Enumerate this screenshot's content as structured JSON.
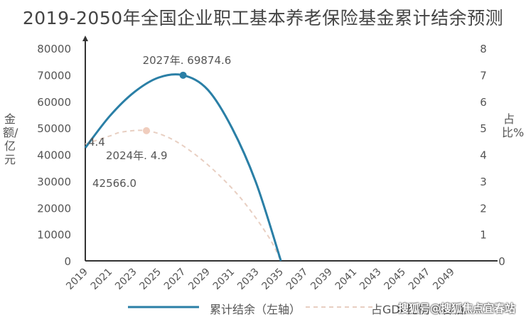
{
  "chart_data": {
    "type": "line",
    "title": "2019-2050年全国企业职工基本养老保险基金累计结余预测",
    "ylabel_left": "金额/亿元",
    "ylabel_right": "占比%",
    "x_ticks": [
      "2019",
      "2021",
      "2023",
      "2025",
      "2027",
      "2029",
      "2031",
      "2033",
      "2035",
      "2037",
      "2039",
      "2041",
      "2043",
      "2045",
      "2047",
      "2049"
    ],
    "xlim": [
      2019,
      2049
    ],
    "ylim_left": [
      0,
      80000
    ],
    "y_ticks_left": [
      0,
      10000,
      20000,
      30000,
      40000,
      50000,
      60000,
      70000,
      80000
    ],
    "ylim_right": [
      0,
      8
    ],
    "y_ticks_right": [
      0,
      1,
      2,
      3,
      4,
      5,
      6,
      7,
      8
    ],
    "series": [
      {
        "name": "累计结余（左轴）",
        "axis": "left",
        "color": "#2a7fa6",
        "style": "solid",
        "x": [
          2019,
          2021,
          2023,
          2025,
          2027,
          2029,
          2031,
          2033,
          2035
        ],
        "y": [
          42566.0,
          54500,
          63500,
          69000,
          69874.6,
          64500,
          50000,
          29000,
          0
        ]
      },
      {
        "name": "占GDP比例（右轴）",
        "axis": "right",
        "color": "#e8cfc2",
        "style": "dashed",
        "x": [
          2019,
          2021,
          2022,
          2024,
          2026,
          2028,
          2030,
          2032,
          2034,
          2035
        ],
        "y": [
          4.4,
          4.7,
          4.85,
          4.9,
          4.6,
          4.0,
          3.2,
          2.2,
          0.9,
          0
        ]
      }
    ],
    "annotations": [
      {
        "text": "2027年. 69874.6",
        "series": 0,
        "x": 2027,
        "y": 69874.6,
        "marker_color": "#2a7fa6"
      },
      {
        "text": "2024年. 4.9",
        "series": 1,
        "x": 2024,
        "y": 4.9,
        "marker_color": "#f0cdbd"
      },
      {
        "text": "4.4",
        "series": 1,
        "x": 2019,
        "y": 4.4
      },
      {
        "text": "42566.0",
        "series": 0,
        "x": 2019,
        "y": 42566.0
      }
    ],
    "legend": {
      "placement": "bottom"
    }
  },
  "watermark": "搜狐号@搜狐焦点宜春站"
}
